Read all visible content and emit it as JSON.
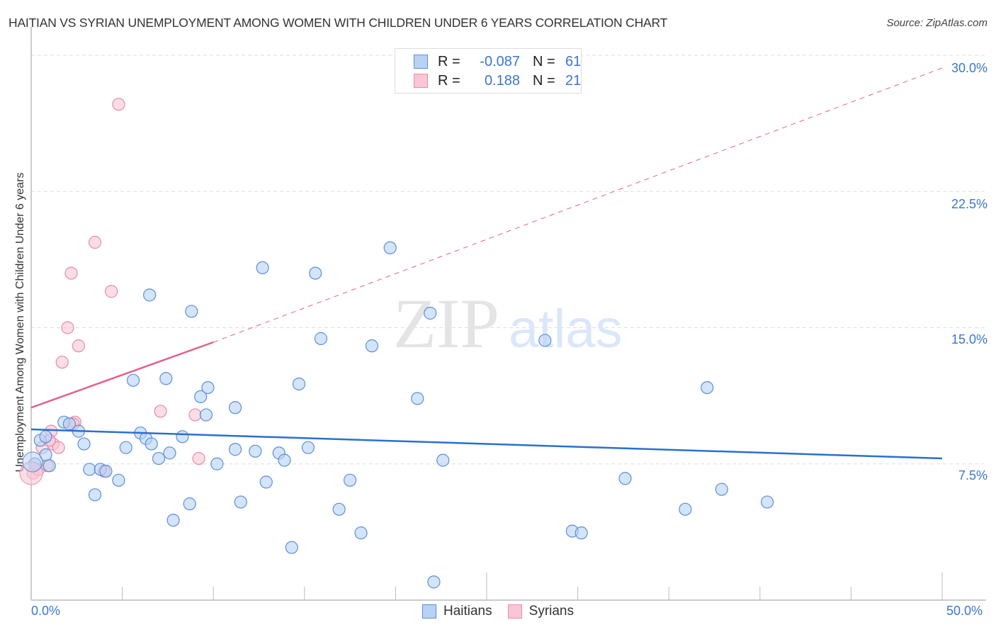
{
  "title": "HAITIAN VS SYRIAN UNEMPLOYMENT AMONG WOMEN WITH CHILDREN UNDER 6 YEARS CORRELATION CHART",
  "source": "Source: ZipAtlas.com",
  "watermark": {
    "zip": "ZIP",
    "atlas": "atlas"
  },
  "colors": {
    "haitians_fill": "#b8d2f5",
    "haitians_stroke": "#5b8fd8",
    "haitians_line": "#2a6fd0",
    "syrians_fill": "#f9c6d6",
    "syrians_stroke": "#e88aa8",
    "syrians_line": "#e0628e",
    "axis_label": "#3a76d0",
    "grid": "#dddddd"
  },
  "legend": {
    "rows": [
      {
        "series": "Haitians",
        "r_label": "R =",
        "r_value": "-0.087",
        "n_label": "N =",
        "n_value": "61"
      },
      {
        "series": "Syrians",
        "r_label": "R =",
        "r_value": "0.188",
        "n_label": "N =",
        "n_value": "21"
      }
    ]
  },
  "bottom_legend": [
    {
      "label": "Haitians"
    },
    {
      "label": "Syrians"
    }
  ],
  "axes": {
    "x_min_label": "0.0%",
    "x_max_label": "50.0%",
    "y_ticks": [
      "30.0%",
      "22.5%",
      "15.0%",
      "7.5%"
    ],
    "ylabel": "Unemployment Among Women with Children Under 6 years"
  },
  "chart_data": {
    "type": "scatter",
    "title": "HAITIAN VS SYRIAN UNEMPLOYMENT AMONG WOMEN WITH CHILDREN UNDER 6 YEARS CORRELATION CHART",
    "xlabel": "",
    "ylabel": "Unemployment Among Women with Children Under 6 years",
    "xlim": [
      0,
      50
    ],
    "ylim": [
      0,
      30
    ],
    "x_ticks": [
      "0.0%",
      "50.0%"
    ],
    "y_ticks": [
      "7.5%",
      "15.0%",
      "22.5%",
      "30.0%"
    ],
    "grid": true,
    "legend_position": "top-center and bottom",
    "series": [
      {
        "name": "Haitians",
        "r": -0.087,
        "n": 61,
        "trend": {
          "x": [
            0,
            50
          ],
          "y": [
            9.4,
            7.8
          ]
        },
        "points": [
          [
            0.2,
            7.5
          ],
          [
            0.5,
            8.8
          ],
          [
            0.8,
            9.0
          ],
          [
            0.8,
            8.0
          ],
          [
            1.0,
            7.4
          ],
          [
            1.8,
            9.8
          ],
          [
            2.1,
            9.7
          ],
          [
            2.6,
            9.3
          ],
          [
            2.9,
            8.6
          ],
          [
            3.2,
            7.2
          ],
          [
            3.5,
            5.8
          ],
          [
            3.8,
            7.2
          ],
          [
            4.1,
            7.1
          ],
          [
            4.8,
            6.6
          ],
          [
            5.2,
            8.4
          ],
          [
            5.6,
            12.1
          ],
          [
            6.0,
            9.2
          ],
          [
            6.3,
            8.9
          ],
          [
            6.6,
            8.6
          ],
          [
            6.5,
            16.8
          ],
          [
            7.0,
            7.8
          ],
          [
            7.4,
            12.2
          ],
          [
            7.6,
            8.1
          ],
          [
            7.8,
            4.4
          ],
          [
            8.3,
            9.0
          ],
          [
            8.7,
            5.3
          ],
          [
            8.8,
            15.9
          ],
          [
            9.3,
            11.2
          ],
          [
            9.6,
            10.2
          ],
          [
            9.7,
            11.7
          ],
          [
            10.2,
            7.5
          ],
          [
            11.2,
            8.3
          ],
          [
            11.2,
            10.6
          ],
          [
            11.5,
            5.4
          ],
          [
            12.3,
            8.2
          ],
          [
            12.7,
            18.3
          ],
          [
            12.9,
            6.5
          ],
          [
            13.6,
            8.1
          ],
          [
            13.9,
            7.7
          ],
          [
            14.3,
            2.9
          ],
          [
            14.7,
            11.9
          ],
          [
            15.2,
            8.4
          ],
          [
            15.6,
            18.0
          ],
          [
            15.9,
            14.4
          ],
          [
            16.9,
            5.0
          ],
          [
            17.5,
            6.6
          ],
          [
            18.1,
            3.7
          ],
          [
            18.7,
            14.0
          ],
          [
            19.7,
            19.4
          ],
          [
            21.2,
            11.1
          ],
          [
            21.9,
            15.8
          ],
          [
            22.1,
            1.0
          ],
          [
            22.6,
            7.7
          ],
          [
            28.2,
            14.3
          ],
          [
            29.7,
            3.8
          ],
          [
            30.2,
            3.7
          ],
          [
            32.6,
            6.7
          ],
          [
            35.9,
            5.0
          ],
          [
            37.1,
            11.7
          ],
          [
            37.9,
            6.1
          ],
          [
            40.4,
            5.4
          ]
        ]
      },
      {
        "name": "Syrians",
        "r": 0.188,
        "n": 21,
        "trend": {
          "x": [
            0,
            10
          ],
          "y": [
            10.6,
            14.2
          ],
          "dashed_extension": {
            "x": [
              10,
              50
            ],
            "y": [
              14.2,
              29.3
            ]
          }
        },
        "points": [
          [
            0.1,
            7.0
          ],
          [
            0.4,
            7.2
          ],
          [
            0.6,
            8.4
          ],
          [
            0.9,
            7.4
          ],
          [
            1.1,
            9.3
          ],
          [
            1.2,
            8.6
          ],
          [
            1.5,
            8.4
          ],
          [
            1.7,
            13.1
          ],
          [
            2.0,
            15.0
          ],
          [
            2.2,
            18.0
          ],
          [
            2.4,
            9.8
          ],
          [
            2.6,
            14.0
          ],
          [
            3.5,
            19.7
          ],
          [
            4.0,
            7.1
          ],
          [
            4.4,
            17.0
          ],
          [
            4.8,
            27.3
          ],
          [
            7.1,
            10.4
          ],
          [
            9.0,
            10.2
          ],
          [
            9.2,
            7.8
          ],
          [
            1.0,
            8.8
          ],
          [
            2.3,
            9.7
          ]
        ]
      }
    ]
  }
}
